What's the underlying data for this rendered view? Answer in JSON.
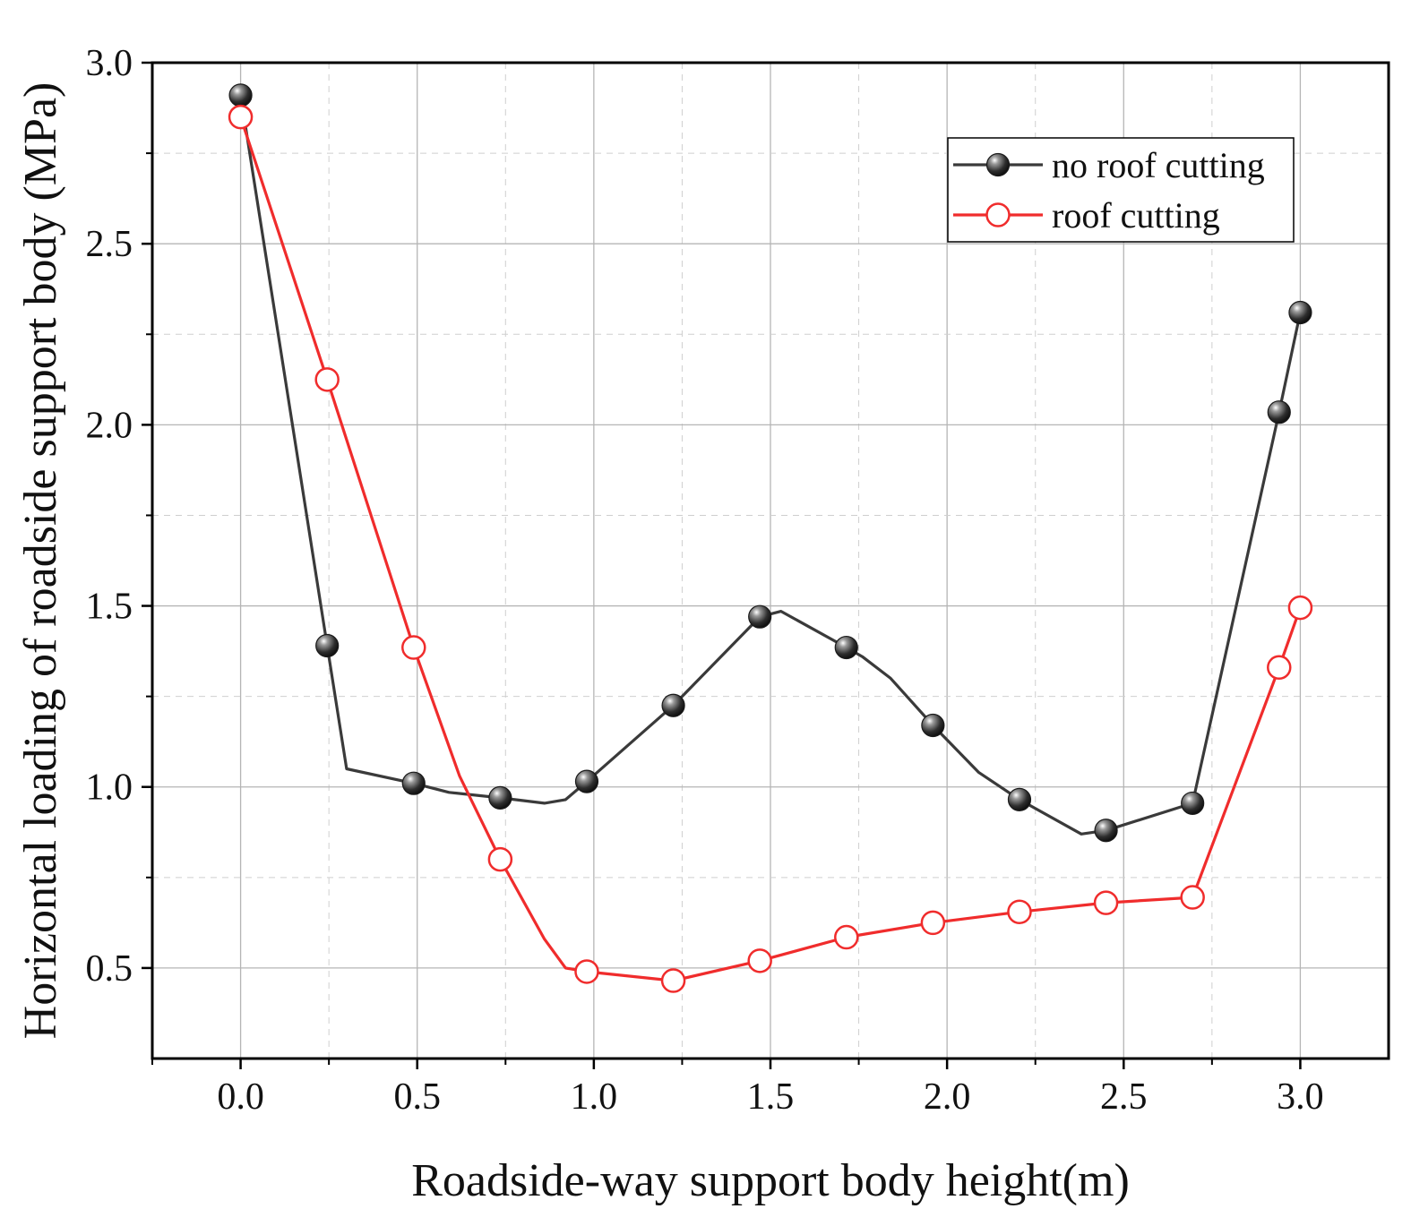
{
  "chart_data": {
    "type": "line",
    "title": "",
    "xlabel": "Roadside-way support body height(m)",
    "ylabel": "Horizontal loading of roadside support body (MPa)",
    "xlim": [
      -0.25,
      3.25
    ],
    "ylim": [
      0.25,
      3.0
    ],
    "xticks": [
      0.0,
      0.5,
      1.0,
      1.5,
      2.0,
      2.5,
      3.0
    ],
    "xtick_labels": [
      "0.0",
      "0.5",
      "1.0",
      "1.5",
      "2.0",
      "2.5",
      "3.0"
    ],
    "yticks": [
      0.5,
      1.0,
      1.5,
      2.0,
      2.5,
      3.0
    ],
    "ytick_labels": [
      "0.5",
      "1.0",
      "1.5",
      "2.0",
      "2.5",
      "3.0"
    ],
    "grid": true,
    "legend_position": "top-right",
    "series": [
      {
        "name": "no roof cutting",
        "color": "#3a3a3a",
        "marker": "filled-sphere",
        "markers": [
          {
            "x": 0.0,
            "y": 2.91
          },
          {
            "x": 0.245,
            "y": 1.39
          },
          {
            "x": 0.49,
            "y": 1.01
          },
          {
            "x": 0.735,
            "y": 0.97
          },
          {
            "x": 0.98,
            "y": 1.015
          },
          {
            "x": 1.225,
            "y": 1.225
          },
          {
            "x": 1.47,
            "y": 1.47
          },
          {
            "x": 1.715,
            "y": 1.385
          },
          {
            "x": 1.96,
            "y": 1.17
          },
          {
            "x": 2.205,
            "y": 0.965
          },
          {
            "x": 2.45,
            "y": 0.88
          },
          {
            "x": 2.695,
            "y": 0.955
          },
          {
            "x": 2.94,
            "y": 2.035
          },
          {
            "x": 3.0,
            "y": 2.31
          }
        ],
        "line": [
          {
            "x": 0.0,
            "y": 2.91
          },
          {
            "x": 0.245,
            "y": 1.39
          },
          {
            "x": 0.3,
            "y": 1.05
          },
          {
            "x": 0.49,
            "y": 1.01
          },
          {
            "x": 0.59,
            "y": 0.985
          },
          {
            "x": 0.735,
            "y": 0.97
          },
          {
            "x": 0.86,
            "y": 0.955
          },
          {
            "x": 0.92,
            "y": 0.965
          },
          {
            "x": 0.98,
            "y": 1.015
          },
          {
            "x": 1.225,
            "y": 1.225
          },
          {
            "x": 1.47,
            "y": 1.47
          },
          {
            "x": 1.53,
            "y": 1.485
          },
          {
            "x": 1.715,
            "y": 1.385
          },
          {
            "x": 1.76,
            "y": 1.36
          },
          {
            "x": 1.84,
            "y": 1.3
          },
          {
            "x": 1.96,
            "y": 1.17
          },
          {
            "x": 2.09,
            "y": 1.04
          },
          {
            "x": 2.205,
            "y": 0.965
          },
          {
            "x": 2.38,
            "y": 0.87
          },
          {
            "x": 2.45,
            "y": 0.88
          },
          {
            "x": 2.695,
            "y": 0.955
          },
          {
            "x": 2.94,
            "y": 2.035
          },
          {
            "x": 3.0,
            "y": 2.31
          }
        ]
      },
      {
        "name": "roof cutting",
        "color": "#f02c2c",
        "marker": "hollow-circle",
        "markers": [
          {
            "x": 0.0,
            "y": 2.85
          },
          {
            "x": 0.245,
            "y": 2.125
          },
          {
            "x": 0.49,
            "y": 1.385
          },
          {
            "x": 0.735,
            "y": 0.8
          },
          {
            "x": 0.98,
            "y": 0.49
          },
          {
            "x": 1.225,
            "y": 0.465
          },
          {
            "x": 1.47,
            "y": 0.52
          },
          {
            "x": 1.715,
            "y": 0.585
          },
          {
            "x": 1.96,
            "y": 0.625
          },
          {
            "x": 2.205,
            "y": 0.655
          },
          {
            "x": 2.45,
            "y": 0.68
          },
          {
            "x": 2.695,
            "y": 0.695
          },
          {
            "x": 2.94,
            "y": 1.33
          },
          {
            "x": 3.0,
            "y": 1.495
          }
        ],
        "line": [
          {
            "x": 0.0,
            "y": 2.85
          },
          {
            "x": 0.245,
            "y": 2.125
          },
          {
            "x": 0.49,
            "y": 1.385
          },
          {
            "x": 0.62,
            "y": 1.03
          },
          {
            "x": 0.735,
            "y": 0.8
          },
          {
            "x": 0.86,
            "y": 0.58
          },
          {
            "x": 0.92,
            "y": 0.5
          },
          {
            "x": 0.98,
            "y": 0.49
          },
          {
            "x": 1.225,
            "y": 0.465
          },
          {
            "x": 1.47,
            "y": 0.52
          },
          {
            "x": 1.715,
            "y": 0.585
          },
          {
            "x": 1.96,
            "y": 0.625
          },
          {
            "x": 2.205,
            "y": 0.655
          },
          {
            "x": 2.45,
            "y": 0.68
          },
          {
            "x": 2.695,
            "y": 0.695
          },
          {
            "x": 2.94,
            "y": 1.33
          },
          {
            "x": 3.0,
            "y": 1.495
          }
        ]
      }
    ]
  }
}
